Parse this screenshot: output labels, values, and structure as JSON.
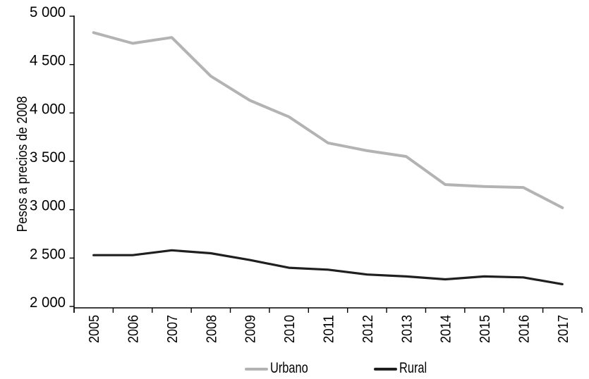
{
  "chart_data": {
    "type": "line",
    "title": "",
    "xlabel": "",
    "ylabel": "Pesos a precios de 2008",
    "x": [
      "2005",
      "2006",
      "2007",
      "2008",
      "2009",
      "2010",
      "2011",
      "2012",
      "2013",
      "2014",
      "2015",
      "2016",
      "2017"
    ],
    "series": [
      {
        "name": "Urbano",
        "color": "#b3b3b3",
        "values": [
          4830,
          4720,
          4780,
          4380,
          4130,
          3960,
          3690,
          3610,
          3550,
          3260,
          3240,
          3230,
          3020
        ]
      },
      {
        "name": "Rural",
        "color": "#1f1f1f",
        "values": [
          2530,
          2530,
          2580,
          2550,
          2480,
          2400,
          2380,
          2330,
          2310,
          2280,
          2310,
          2300,
          2230
        ]
      }
    ],
    "ylim": [
      2000,
      5000
    ],
    "ytick_step": 500,
    "ytick_labels": [
      "2 000",
      "2 500",
      "3 000",
      "3 500",
      "4 000",
      "4 500",
      "5 000"
    ],
    "grid": false,
    "legend_position": "bottom",
    "axis_color": "#000000",
    "text_color": "#000000",
    "background_color": "#ffffff"
  }
}
